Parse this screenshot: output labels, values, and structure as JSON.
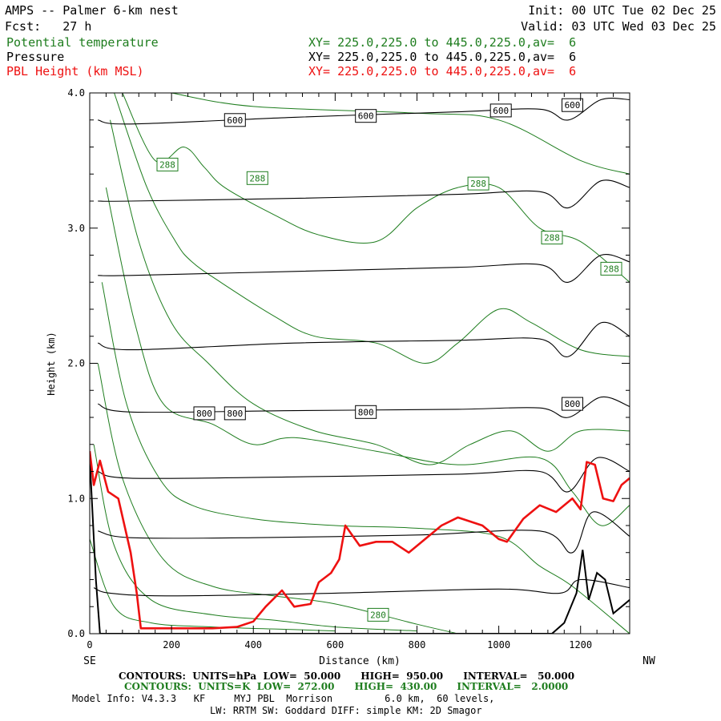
{
  "header": {
    "title": "AMPS -- Palmer 6-km nest",
    "init": "Init: 00 UTC Tue 02 Dec 25",
    "fcst_label": "Fcst:",
    "fcst_value": "27 h",
    "valid": "Valid: 03 UTC Wed 03 Dec 25",
    "fields": [
      {
        "name": "Potential temperature",
        "xy": "XY= 225.0,225.0 to 445.0,225.0,av=  6",
        "color": "#1e7d1e"
      },
      {
        "name": "Pressure",
        "xy": "XY= 225.0,225.0 to 445.0,225.0,av=  6",
        "color": "#000000"
      },
      {
        "name": "PBL Height (km MSL)",
        "xy": "XY= 225.0,225.0 to 445.0,225.0,av=  6",
        "color": "#ee1111"
      }
    ]
  },
  "chart_data": {
    "type": "line",
    "title": "AMPS -- Palmer 6-km nest",
    "xlabel": "Distance (km)",
    "ylabel": "Height (km)",
    "xlim": [
      0,
      1320
    ],
    "ylim": [
      0,
      4
    ],
    "x_ticks": [
      "0",
      "200",
      "400",
      "600",
      "800",
      "1000",
      "1200"
    ],
    "y_ticks": [
      "0.0",
      "1.0",
      "2.0",
      "3.0",
      "4.0"
    ],
    "x_end_labels": {
      "left": "SE",
      "right": "NW"
    },
    "pressure_contours": {
      "units": "hPa",
      "interval": 50,
      "color": "#000000",
      "lines": [
        {
          "level": 950,
          "pts": [
            [
              10,
              0.34
            ],
            [
              50,
              0.3
            ],
            [
              200,
              0.28
            ],
            [
              600,
              0.3
            ],
            [
              1000,
              0.33
            ],
            [
              1150,
              0.3
            ],
            [
              1200,
              0.4
            ],
            [
              1320,
              0.34
            ]
          ]
        },
        {
          "level": 900,
          "pts": [
            [
              20,
              0.76
            ],
            [
              100,
              0.71
            ],
            [
              400,
              0.71
            ],
            [
              800,
              0.73
            ],
            [
              1100,
              0.76
            ],
            [
              1180,
              0.6
            ],
            [
              1230,
              0.9
            ],
            [
              1320,
              0.72
            ]
          ]
        },
        {
          "level": 850,
          "pts": [
            [
              20,
              1.2
            ],
            [
              100,
              1.15
            ],
            [
              500,
              1.16
            ],
            [
              900,
              1.18
            ],
            [
              1100,
              1.2
            ],
            [
              1170,
              1.05
            ],
            [
              1240,
              1.3
            ],
            [
              1320,
              1.2
            ]
          ]
        },
        {
          "level": 800,
          "pts": [
            [
              20,
              1.7
            ],
            [
              100,
              1.64
            ],
            [
              500,
              1.65
            ],
            [
              900,
              1.66
            ],
            [
              1100,
              1.67
            ],
            [
              1170,
              1.6
            ],
            [
              1250,
              1.75
            ],
            [
              1320,
              1.68
            ]
          ]
        },
        {
          "level": 750,
          "pts": [
            [
              20,
              2.15
            ],
            [
              100,
              2.1
            ],
            [
              500,
              2.15
            ],
            [
              900,
              2.17
            ],
            [
              1100,
              2.18
            ],
            [
              1170,
              2.05
            ],
            [
              1250,
              2.3
            ],
            [
              1320,
              2.2
            ]
          ]
        },
        {
          "level": 700,
          "pts": [
            [
              20,
              2.65
            ],
            [
              100,
              2.65
            ],
            [
              500,
              2.68
            ],
            [
              900,
              2.71
            ],
            [
              1100,
              2.73
            ],
            [
              1170,
              2.6
            ],
            [
              1250,
              2.8
            ],
            [
              1320,
              2.75
            ]
          ]
        },
        {
          "level": 650,
          "pts": [
            [
              20,
              3.2
            ],
            [
              100,
              3.2
            ],
            [
              500,
              3.22
            ],
            [
              900,
              3.25
            ],
            [
              1100,
              3.27
            ],
            [
              1170,
              3.15
            ],
            [
              1250,
              3.35
            ],
            [
              1320,
              3.3
            ]
          ]
        },
        {
          "level": 600,
          "pts": [
            [
              20,
              3.8
            ],
            [
              100,
              3.77
            ],
            [
              500,
              3.82
            ],
            [
              900,
              3.86
            ],
            [
              1100,
              3.88
            ],
            [
              1170,
              3.8
            ],
            [
              1250,
              3.95
            ],
            [
              1320,
              3.95
            ]
          ]
        }
      ],
      "labels": [
        {
          "text": "600",
          "x": 355,
          "y": 3.8
        },
        {
          "text": "600",
          "x": 675,
          "y": 3.83
        },
        {
          "text": "600",
          "x": 1005,
          "y": 3.87
        },
        {
          "text": "600",
          "x": 1180,
          "y": 3.91
        },
        {
          "text": "800",
          "x": 280,
          "y": 1.63
        },
        {
          "text": "800",
          "x": 355,
          "y": 1.63
        },
        {
          "text": "800",
          "x": 675,
          "y": 1.64
        },
        {
          "text": "800",
          "x": 1180,
          "y": 1.7
        }
      ]
    },
    "theta_contours": {
      "units": "K",
      "interval": 2,
      "color": "#1e7d1e",
      "lines": [
        {
          "pts": [
            [
              0,
              0.7
            ],
            [
              60,
              0.2
            ],
            [
              150,
              0.08
            ],
            [
              300,
              0.05
            ],
            [
              500,
              0.03
            ],
            [
              600,
              0.02
            ]
          ]
        },
        {
          "pts": [
            [
              10,
              1.4
            ],
            [
              60,
              0.65
            ],
            [
              150,
              0.25
            ],
            [
              300,
              0.14
            ],
            [
              450,
              0.1
            ],
            [
              600,
              0.05
            ],
            [
              800,
              0.02
            ]
          ]
        },
        {
          "pts": [
            [
              20,
              2.0
            ],
            [
              80,
              1.15
            ],
            [
              180,
              0.55
            ],
            [
              300,
              0.35
            ],
            [
              450,
              0.28
            ],
            [
              600,
              0.22
            ],
            [
              800,
              0.07
            ],
            [
              900,
              0.0
            ]
          ]
        },
        {
          "pts": [
            [
              30,
              2.6
            ],
            [
              90,
              1.7
            ],
            [
              170,
              1.15
            ],
            [
              250,
              0.95
            ],
            [
              400,
              0.85
            ],
            [
              600,
              0.8
            ],
            [
              800,
              0.78
            ],
            [
              1000,
              0.72
            ],
            [
              1100,
              0.5
            ],
            [
              1180,
              0.35
            ],
            [
              1320,
              0.0
            ]
          ]
        },
        {
          "pts": [
            [
              40,
              3.3
            ],
            [
              110,
              2.3
            ],
            [
              180,
              1.7
            ],
            [
              300,
              1.55
            ],
            [
              400,
              1.4
            ],
            [
              500,
              1.45
            ],
            [
              700,
              1.35
            ],
            [
              900,
              1.25
            ],
            [
              1100,
              1.3
            ],
            [
              1180,
              1.05
            ],
            [
              1250,
              0.8
            ],
            [
              1320,
              0.95
            ]
          ]
        },
        {
          "pts": [
            [
              50,
              3.8
            ],
            [
              120,
              2.9
            ],
            [
              200,
              2.3
            ],
            [
              290,
              2.0
            ],
            [
              400,
              1.7
            ],
            [
              550,
              1.5
            ],
            [
              700,
              1.4
            ],
            [
              830,
              1.25
            ],
            [
              930,
              1.4
            ],
            [
              1030,
              1.5
            ],
            [
              1120,
              1.35
            ],
            [
              1200,
              1.5
            ],
            [
              1320,
              1.5
            ]
          ]
        },
        {
          "pts": [
            [
              60,
              4.0
            ],
            [
              140,
              3.3
            ],
            [
              210,
              2.9
            ],
            [
              250,
              2.75
            ],
            [
              320,
              2.6
            ],
            [
              450,
              2.35
            ],
            [
              550,
              2.2
            ],
            [
              700,
              2.15
            ],
            [
              820,
              2.0
            ],
            [
              900,
              2.15
            ],
            [
              1000,
              2.4
            ],
            [
              1080,
              2.3
            ],
            [
              1200,
              2.1
            ],
            [
              1320,
              2.05
            ]
          ]
        },
        {
          "pts": [
            [
              80,
              4.0
            ],
            [
              160,
              3.5
            ],
            [
              230,
              3.6
            ],
            [
              280,
              3.45
            ],
            [
              330,
              3.3
            ],
            [
              450,
              3.1
            ],
            [
              560,
              2.95
            ],
            [
              700,
              2.9
            ],
            [
              800,
              3.15
            ],
            [
              900,
              3.3
            ],
            [
              1000,
              3.3
            ],
            [
              1100,
              3.0
            ],
            [
              1200,
              2.9
            ],
            [
              1320,
              2.6
            ]
          ]
        },
        {
          "pts": [
            [
              200,
              4.0
            ],
            [
              400,
              3.9
            ],
            [
              800,
              3.85
            ],
            [
              1000,
              3.8
            ],
            [
              1200,
              3.5
            ],
            [
              1320,
              3.4
            ]
          ]
        }
      ],
      "labels": [
        {
          "text": "288",
          "x": 190,
          "y": 3.47
        },
        {
          "text": "288",
          "x": 410,
          "y": 3.37
        },
        {
          "text": "288",
          "x": 950,
          "y": 3.33
        },
        {
          "text": "288",
          "x": 1130,
          "y": 2.93
        },
        {
          "text": "288",
          "x": 1275,
          "y": 2.7
        },
        {
          "text": "280",
          "x": 705,
          "y": 0.14
        }
      ]
    },
    "pbl_height": {
      "name": "PBL Height (km MSL)",
      "color": "#ee1111",
      "pts": [
        [
          0,
          1.35
        ],
        [
          10,
          1.1
        ],
        [
          25,
          1.28
        ],
        [
          45,
          1.05
        ],
        [
          70,
          1.0
        ],
        [
          100,
          0.6
        ],
        [
          115,
          0.3
        ],
        [
          125,
          0.04
        ],
        [
          200,
          0.04
        ],
        [
          300,
          0.04
        ],
        [
          360,
          0.05
        ],
        [
          400,
          0.09
        ],
        [
          430,
          0.2
        ],
        [
          470,
          0.32
        ],
        [
          500,
          0.2
        ],
        [
          540,
          0.22
        ],
        [
          560,
          0.38
        ],
        [
          590,
          0.45
        ],
        [
          610,
          0.55
        ],
        [
          625,
          0.8
        ],
        [
          660,
          0.65
        ],
        [
          700,
          0.68
        ],
        [
          740,
          0.68
        ],
        [
          780,
          0.6
        ],
        [
          820,
          0.7
        ],
        [
          860,
          0.8
        ],
        [
          900,
          0.86
        ],
        [
          960,
          0.8
        ],
        [
          1000,
          0.7
        ],
        [
          1020,
          0.68
        ],
        [
          1060,
          0.85
        ],
        [
          1100,
          0.95
        ],
        [
          1140,
          0.9
        ],
        [
          1180,
          1.0
        ],
        [
          1200,
          0.92
        ],
        [
          1215,
          1.27
        ],
        [
          1235,
          1.25
        ],
        [
          1255,
          1.0
        ],
        [
          1280,
          0.98
        ],
        [
          1300,
          1.1
        ],
        [
          1320,
          1.15
        ]
      ]
    },
    "terrain": {
      "color": "#000000",
      "pts": [
        [
          0,
          1.3
        ],
        [
          15,
          0.4
        ],
        [
          25,
          0.0
        ],
        [
          1130,
          0.0
        ],
        [
          1160,
          0.08
        ],
        [
          1190,
          0.3
        ],
        [
          1205,
          0.62
        ],
        [
          1220,
          0.25
        ],
        [
          1240,
          0.45
        ],
        [
          1260,
          0.4
        ],
        [
          1280,
          0.15
        ],
        [
          1300,
          0.2
        ],
        [
          1320,
          0.25
        ]
      ]
    }
  },
  "footer": {
    "pressure_contours": "CONTOURS:  UNITS=hPa  LOW=  50.000      HIGH=  950.00      INTERVAL=   50.000",
    "theta_contours": "CONTOURS:  UNITS=K  LOW=  272.00      HIGH=  430.00      INTERVAL=   2.0000",
    "model_info": "Model Info: V4.3.3   KF     MYJ PBL  Morrison         6.0 km,  60 levels,",
    "physics": "LW: RRTM SW: Goddard DIFF: simple KM: 2D Smagor"
  }
}
